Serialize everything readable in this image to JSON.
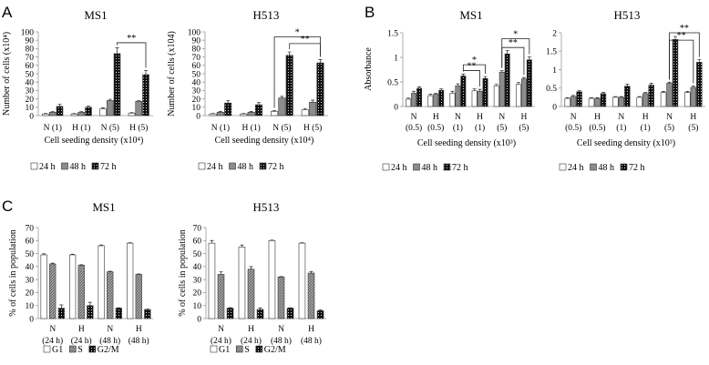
{
  "panels": [
    {
      "label": "A"
    },
    {
      "label": "B"
    },
    {
      "label": "C"
    }
  ],
  "colors": {
    "white": "#ffffff",
    "gray": "#8c8c8c",
    "black": "#111111",
    "axis": "#9a9a9a"
  },
  "patterns": {
    "48 h": "gray",
    "72 h": "dotted-black",
    "S": "hatched-gray",
    "G2/M": "dotted-black"
  },
  "chart_data": [
    {
      "type": "bar",
      "panel": "A",
      "title": "MS1",
      "xlabel": "Cell seeding density (x10⁴)",
      "ylabel": "Number of cells (x10⁴)",
      "ylim": [
        0,
        100
      ],
      "yticks": [
        0,
        10,
        20,
        30,
        40,
        50,
        60,
        70,
        80,
        90,
        100
      ],
      "categories": [
        [
          "N (1)"
        ],
        [
          "H (1)"
        ],
        [
          "N (5)"
        ],
        [
          "H (5)"
        ]
      ],
      "series": [
        {
          "name": "24 h",
          "values": [
            2,
            2,
            8,
            3
          ],
          "err": [
            0.5,
            0.5,
            1.5,
            0.5
          ]
        },
        {
          "name": "48 h",
          "values": [
            4,
            4,
            18,
            17
          ],
          "err": [
            0.8,
            0.8,
            1.5,
            1.0
          ]
        },
        {
          "name": "72 h",
          "values": [
            11,
            10,
            74,
            49
          ],
          "err": [
            2.5,
            1.5,
            7,
            5
          ]
        }
      ],
      "brackets": [
        {
          "from": [
            2,
            2
          ],
          "to": [
            3,
            2
          ],
          "y": 87,
          "label": "**"
        }
      ]
    },
    {
      "type": "bar",
      "panel": "A",
      "title": "H513",
      "xlabel": "Cell seeding density (x10⁴)",
      "ylabel": "Number of cells (x104)",
      "ylim": [
        0,
        100
      ],
      "yticks": [
        0,
        10,
        20,
        30,
        40,
        50,
        60,
        70,
        80,
        90,
        100
      ],
      "categories": [
        [
          "N (1)"
        ],
        [
          "H (1)"
        ],
        [
          "N (5)"
        ],
        [
          "H (5)"
        ]
      ],
      "series": [
        {
          "name": "24 h",
          "values": [
            2,
            2,
            5,
            7
          ],
          "err": [
            0.5,
            0.5,
            1.0,
            1.5
          ]
        },
        {
          "name": "48 h",
          "values": [
            4,
            4,
            21,
            16
          ],
          "err": [
            1.0,
            1.0,
            2.0,
            2.5
          ]
        },
        {
          "name": "72 h",
          "values": [
            15,
            13,
            72,
            63
          ],
          "err": [
            3,
            2.5,
            4,
            4
          ]
        }
      ],
      "brackets": [
        {
          "from": [
            2,
            0
          ],
          "to": [
            3,
            2
          ],
          "y": 94,
          "label": "*"
        },
        {
          "from": [
            2,
            2
          ],
          "to": [
            3,
            2
          ],
          "y": 86,
          "label": "**"
        }
      ]
    },
    {
      "type": "bar",
      "panel": "B",
      "title": "MS1",
      "xlabel": "Cell seeding density (x10³)",
      "ylabel": "Absorbance",
      "ylim": [
        0,
        1.5
      ],
      "yticks": [
        0,
        0.5,
        1,
        1.5
      ],
      "categories": [
        [
          "N",
          "(0.5)"
        ],
        [
          "H",
          "(0.5)"
        ],
        [
          "N",
          "(1)"
        ],
        [
          "H",
          "(1)"
        ],
        [
          "N",
          "(5)"
        ],
        [
          "H",
          "(5)"
        ]
      ],
      "series": [
        {
          "name": "24 h",
          "values": [
            0.15,
            0.22,
            0.27,
            0.32,
            0.42,
            0.45
          ],
          "err": [
            0.02,
            0.03,
            0.04,
            0.04,
            0.03,
            0.04
          ]
        },
        {
          "name": "48 h",
          "values": [
            0.27,
            0.25,
            0.42,
            0.31,
            0.7,
            0.56
          ],
          "err": [
            0.04,
            0.02,
            0.04,
            0.04,
            0.03,
            0.03
          ]
        },
        {
          "name": "72 h",
          "values": [
            0.37,
            0.33,
            0.62,
            0.57,
            1.07,
            0.95
          ],
          "err": [
            0.03,
            0.03,
            0.04,
            0.04,
            0.07,
            0.06
          ]
        }
      ],
      "brackets": [
        {
          "from": [
            2,
            2
          ],
          "to": [
            3,
            2
          ],
          "y": 0.85,
          "label": "*"
        },
        {
          "from": [
            2,
            2
          ],
          "to": [
            3,
            1
          ],
          "y": 0.73,
          "label": "**"
        },
        {
          "from": [
            4,
            1
          ],
          "to": [
            5,
            2
          ],
          "y": 1.38,
          "label": "*"
        },
        {
          "from": [
            4,
            1
          ],
          "to": [
            5,
            1
          ],
          "y": 1.2,
          "label": "**"
        }
      ]
    },
    {
      "type": "bar",
      "panel": "B",
      "title": "H513",
      "xlabel": "Cell seeding density (x10³)",
      "ylabel": "",
      "ylim": [
        0,
        2
      ],
      "yticks": [
        0,
        0.5,
        1,
        1.5,
        2
      ],
      "categories": [
        [
          "N",
          "(0.5)"
        ],
        [
          "H",
          "(0.5)"
        ],
        [
          "N",
          "(1)"
        ],
        [
          "H",
          "(1)"
        ],
        [
          "N",
          "(5)"
        ],
        [
          "H",
          "(5)"
        ]
      ],
      "series": [
        {
          "name": "24 h",
          "values": [
            0.22,
            0.22,
            0.25,
            0.25,
            0.38,
            0.38
          ],
          "err": [
            0.02,
            0.02,
            0.02,
            0.02,
            0.03,
            0.03
          ]
        },
        {
          "name": "48 h",
          "values": [
            0.27,
            0.22,
            0.25,
            0.35,
            0.63,
            0.52
          ],
          "err": [
            0.03,
            0.02,
            0.02,
            0.03,
            0.03,
            0.04
          ]
        },
        {
          "name": "72 h",
          "values": [
            0.4,
            0.35,
            0.55,
            0.58,
            1.82,
            1.2
          ],
          "err": [
            0.03,
            0.03,
            0.06,
            0.05,
            0.08,
            0.07
          ]
        }
      ],
      "brackets": [
        {
          "from": [
            4,
            1
          ],
          "to": [
            5,
            2
          ],
          "y": 2.0,
          "label": "**"
        },
        {
          "from": [
            4,
            1
          ],
          "to": [
            5,
            1
          ],
          "y": 1.8,
          "label": "**"
        }
      ]
    },
    {
      "type": "bar",
      "panel": "C",
      "title": "MS1",
      "xlabel": "",
      "ylabel": "% of cells in population",
      "ylim": [
        0,
        70
      ],
      "yticks": [
        0,
        10,
        20,
        30,
        40,
        50,
        60,
        70
      ],
      "categories": [
        [
          "N",
          "(24 h)"
        ],
        [
          "H",
          "(24 h)"
        ],
        [
          "N",
          "(48 h)"
        ],
        [
          "H",
          "(48 h)"
        ]
      ],
      "series": [
        {
          "name": "G1",
          "values": [
            49,
            49,
            56,
            58
          ],
          "err": [
            0.8,
            0.5,
            0.6,
            0.3
          ]
        },
        {
          "name": "S",
          "values": [
            42,
            41,
            36,
            34
          ],
          "err": [
            0.6,
            0.4,
            0.4,
            0.3
          ]
        },
        {
          "name": "G2/M",
          "values": [
            8,
            10,
            8,
            7
          ],
          "err": [
            2.5,
            2.5,
            0.3,
            0.3
          ]
        }
      ],
      "brackets": []
    },
    {
      "type": "bar",
      "panel": "C",
      "title": "H513",
      "xlabel": "",
      "ylabel": "% of cells in population",
      "ylim": [
        0,
        70
      ],
      "yticks": [
        0,
        10,
        20,
        30,
        40,
        50,
        60,
        70
      ],
      "categories": [
        [
          "N",
          "(24 h)"
        ],
        [
          "H",
          "(24 h)"
        ],
        [
          "N",
          "(48 h)"
        ],
        [
          "H",
          "(48 h)"
        ]
      ],
      "series": [
        {
          "name": "G1",
          "values": [
            58,
            55,
            60,
            58
          ],
          "err": [
            2,
            1.5,
            0.3,
            0.3
          ]
        },
        {
          "name": "S",
          "values": [
            34,
            38,
            32,
            35
          ],
          "err": [
            2,
            2,
            0.3,
            1.2
          ]
        },
        {
          "name": "G2/M",
          "values": [
            8,
            7,
            8,
            6
          ],
          "err": [
            0.4,
            1.2,
            0.3,
            0.8
          ]
        }
      ],
      "brackets": []
    }
  ]
}
